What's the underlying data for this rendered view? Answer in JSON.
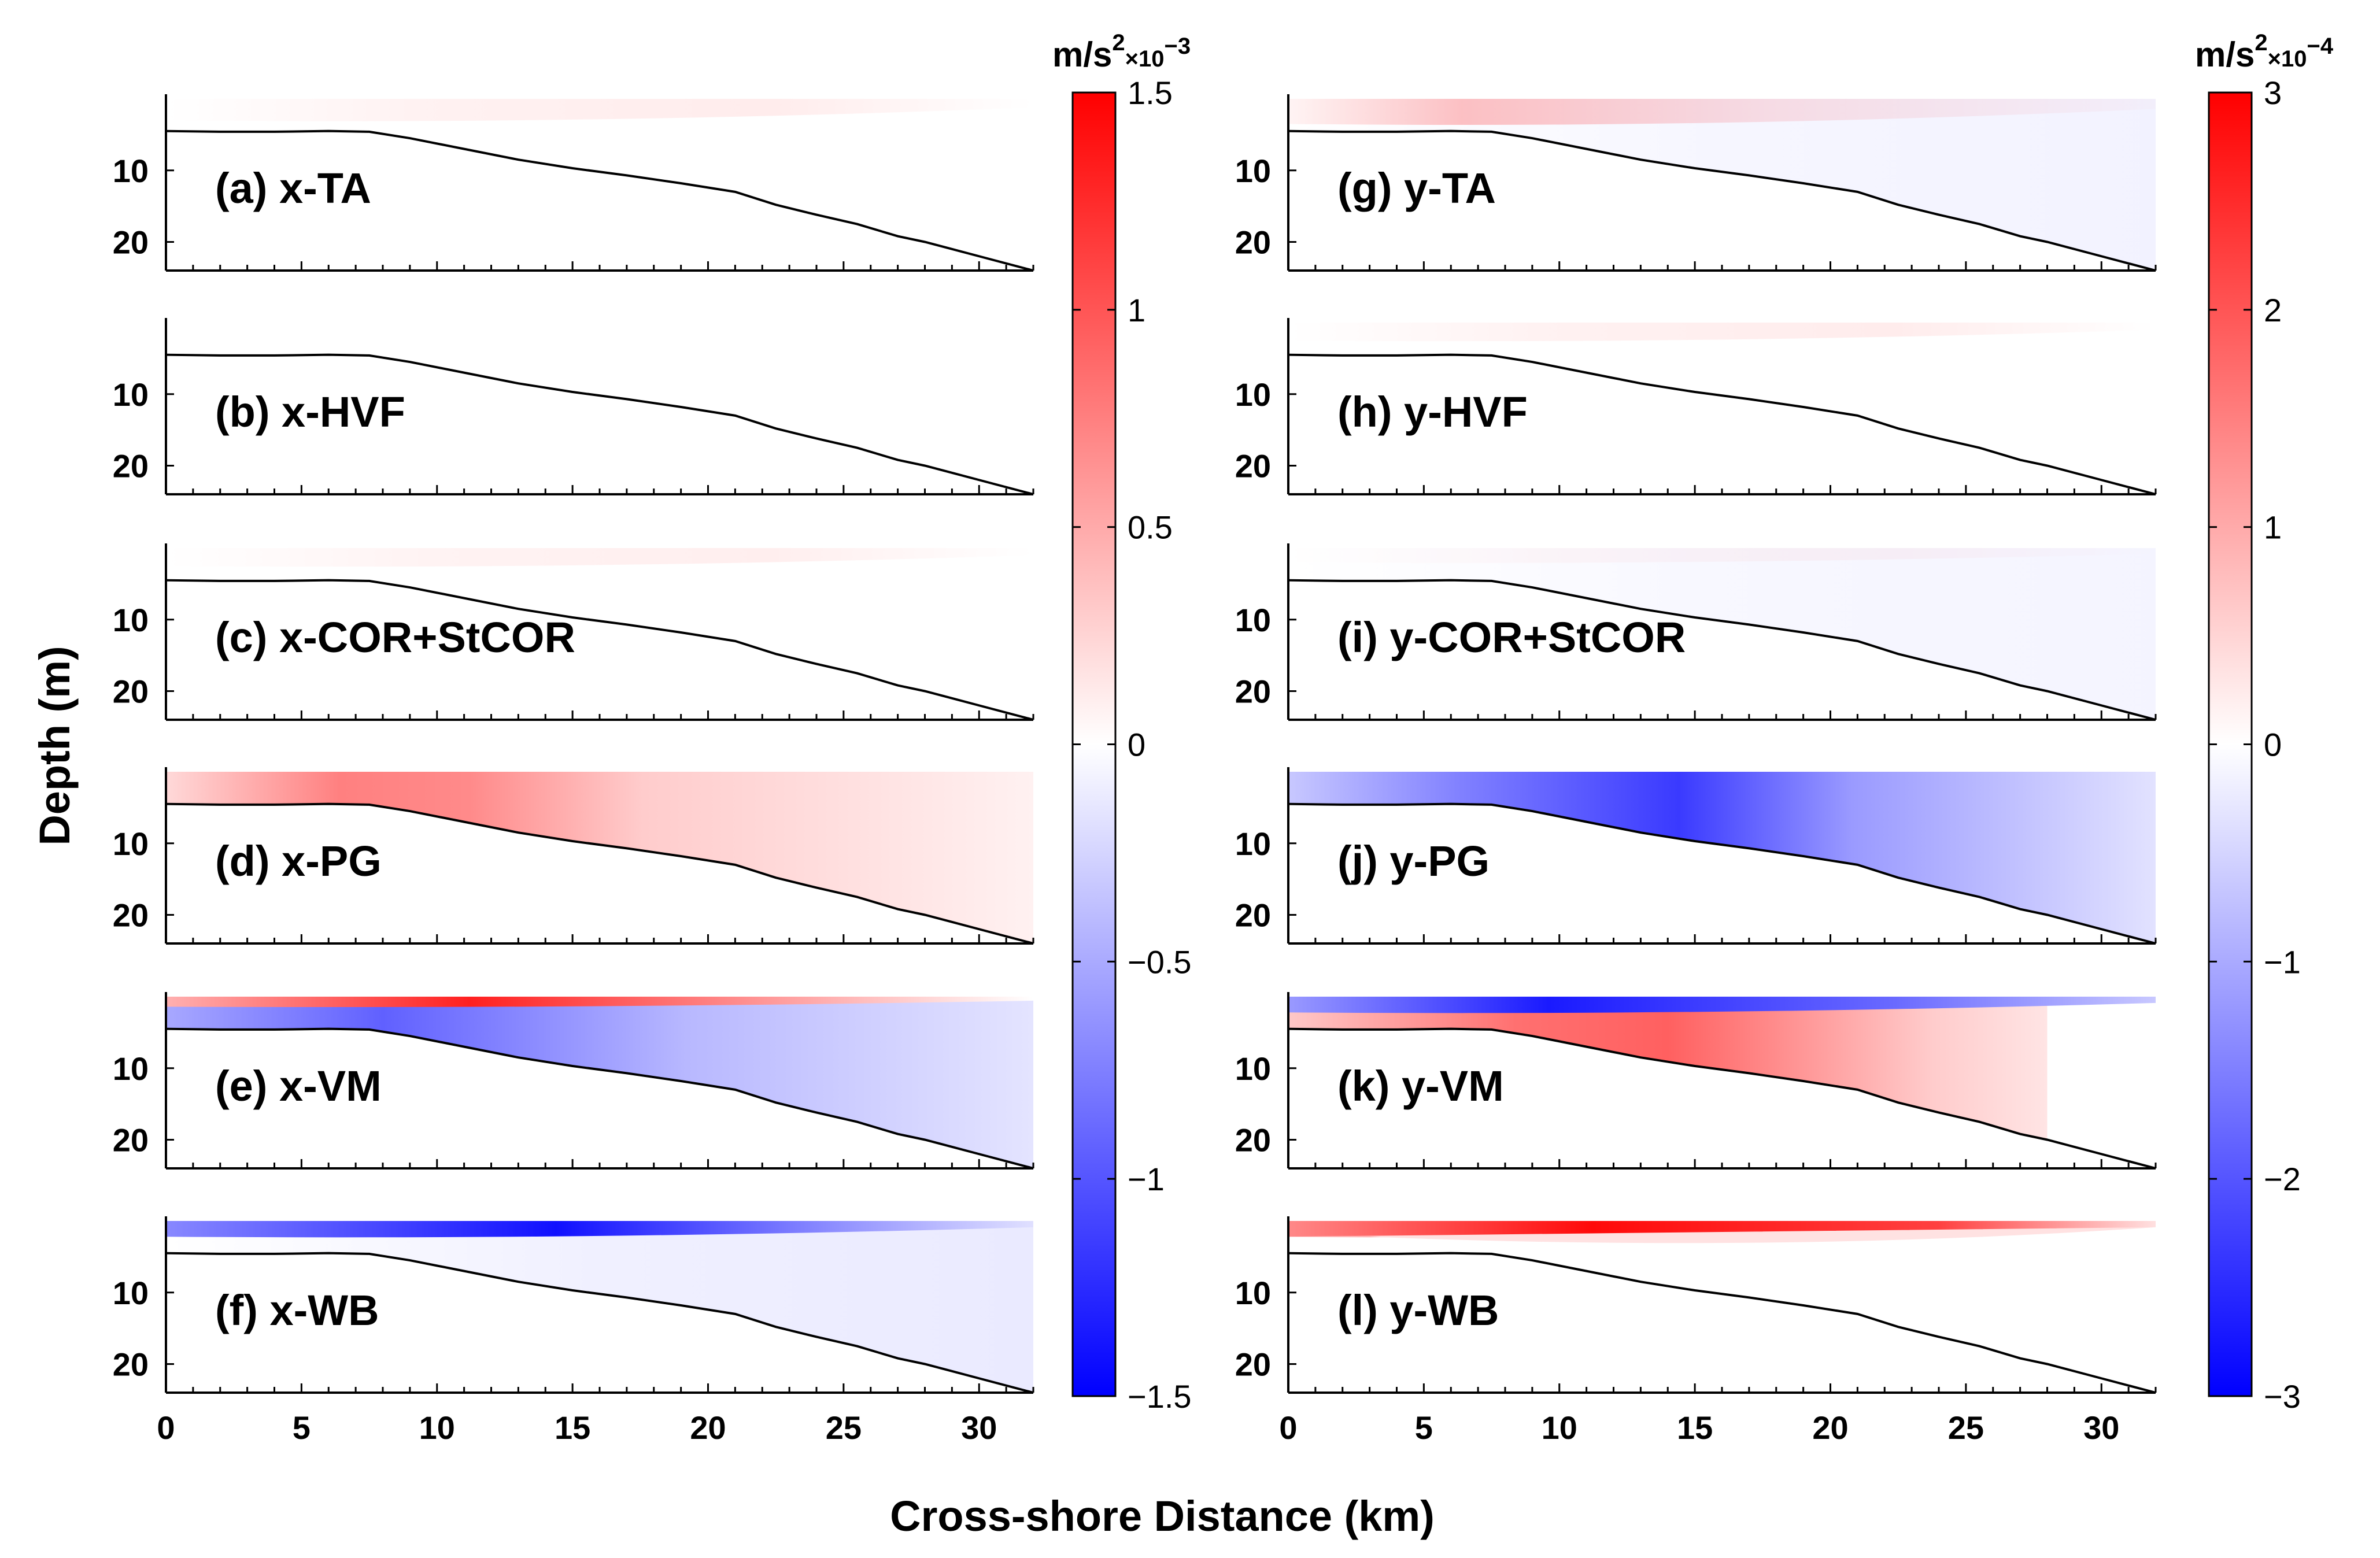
{
  "chart_data": {
    "type": "heatmap",
    "title": "",
    "xlabel": "Cross-shore Distance (km)",
    "ylabel": "Depth (m)",
    "xlim": [
      0,
      32
    ],
    "ylim": [
      24,
      0
    ],
    "xticks": [
      0,
      5,
      10,
      15,
      20,
      25,
      30
    ],
    "yticks": [
      10,
      20
    ],
    "bathymetry": {
      "x": [
        0,
        2,
        4,
        6,
        7.5,
        9,
        11,
        13,
        15,
        17,
        19,
        21,
        22.5,
        24,
        25.5,
        27,
        28,
        30,
        32
      ],
      "depth": [
        4.5,
        4.6,
        4.6,
        4.5,
        4.6,
        5.5,
        7.0,
        8.5,
        9.7,
        10.7,
        11.8,
        13.0,
        14.8,
        16.2,
        17.5,
        19.2,
        20.0,
        22.0,
        24.0
      ]
    },
    "colorbars": [
      {
        "name": "x",
        "unit": "m/s",
        "unit_power": "2",
        "scale": "×10",
        "scale_exp": "−3",
        "range": [
          -1.5,
          1.5
        ],
        "ticks": [
          "1.5",
          "1",
          "0.5",
          "0",
          "−0.5",
          "−1",
          "−1.5"
        ]
      },
      {
        "name": "y",
        "unit": "m/s",
        "unit_power": "2",
        "scale": "×10",
        "scale_exp": "−4",
        "range": [
          -3,
          3
        ],
        "ticks": [
          "3",
          "2",
          "1",
          "0",
          "−1",
          "−2",
          "−3"
        ]
      }
    ],
    "panels": [
      {
        "label": "(a) x-TA",
        "component": "x",
        "pattern": "weak positive near surface, x 10–25 km",
        "peak": 0.1
      },
      {
        "label": "(b) x-HVF",
        "component": "x",
        "pattern": "near zero",
        "peak": 0.0
      },
      {
        "label": "(c) x-COR+StCOR",
        "component": "x",
        "pattern": "weak positive near surface",
        "peak": 0.05
      },
      {
        "label": "(d) x-PG",
        "component": "x",
        "pattern": "positive throughout water column, max near x 8–15 km",
        "peak": 0.9
      },
      {
        "label": "(e) x-VM",
        "component": "x",
        "pattern": "thin positive surface layer, negative below",
        "peak": 1.5,
        "trough": -1.0
      },
      {
        "label": "(f) x-WB",
        "component": "x",
        "pattern": "negative near surface, weak negative at depth",
        "trough": -1.5
      },
      {
        "label": "(g) y-TA",
        "component": "y",
        "pattern": "positive near surface x 2–20 km, weak negative offshore",
        "peak": 1.0,
        "trough": -0.3
      },
      {
        "label": "(h) y-HVF",
        "component": "y",
        "pattern": "weak mixed near surface",
        "peak": 0.3,
        "trough": -0.3
      },
      {
        "label": "(i) y-COR+StCOR",
        "component": "y",
        "pattern": "weak positive surface, weak negative below",
        "peak": 0.3,
        "trough": -0.3
      },
      {
        "label": "(j) y-PG",
        "component": "y",
        "pattern": "negative throughout water column, min near x 12–18 km",
        "trough": -2.5
      },
      {
        "label": "(k) y-VM",
        "component": "y",
        "pattern": "negative surface layer, positive below extending to x ≈ 28 km",
        "peak": 2.0,
        "trough": -3.0
      },
      {
        "label": "(l) y-WB",
        "component": "y",
        "pattern": "strong positive near surface, weak positive below",
        "peak": 3.0
      }
    ]
  }
}
